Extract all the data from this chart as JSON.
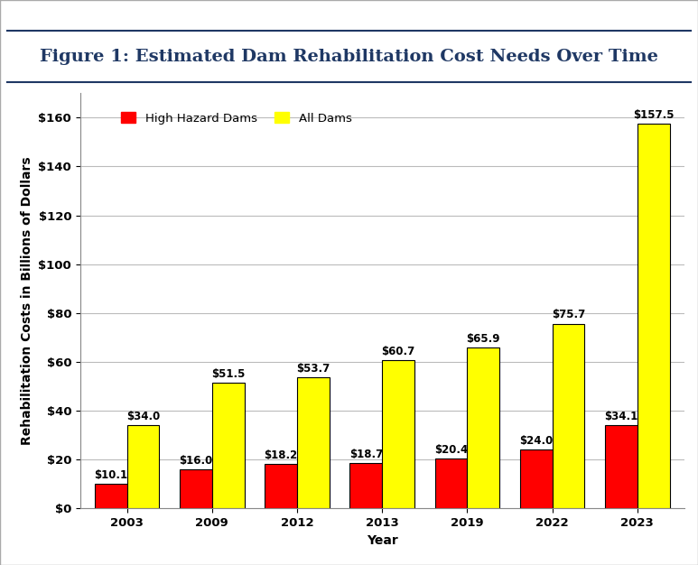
{
  "title": "Figure 1: Estimated Dam Rehabilitation Cost Needs Over Time",
  "xlabel": "Year",
  "ylabel": "Rehabilitation Costs in Billions of Dollars",
  "years": [
    "2003",
    "2009",
    "2012",
    "2013",
    "2019",
    "2022",
    "2023"
  ],
  "high_hazard_values": [
    10.1,
    16.0,
    18.2,
    18.7,
    20.4,
    24.0,
    34.1
  ],
  "all_dams_values": [
    34.0,
    51.5,
    53.7,
    60.7,
    65.9,
    75.7,
    157.5
  ],
  "high_hazard_color": "#FF0000",
  "all_dams_color": "#FFFF00",
  "bar_edge_color": "#000000",
  "ylim": [
    0,
    170
  ],
  "yticks": [
    0,
    20,
    40,
    60,
    80,
    100,
    120,
    140,
    160
  ],
  "ytick_labels": [
    "$0",
    "$20",
    "$40",
    "$60",
    "$80",
    "$100",
    "$120",
    "$140",
    "$160"
  ],
  "legend_high_hazard": "High Hazard Dams",
  "legend_all_dams": "All Dams",
  "title_color": "#1F3864",
  "title_fontsize": 14,
  "axis_label_fontsize": 10,
  "tick_fontsize": 9.5,
  "annotation_fontsize": 8.5,
  "bar_width": 0.38,
  "figure_bg": "#FFFFFF",
  "plot_bg": "#FFFFFF",
  "border_color": "#1F3864",
  "grid_color": "#BBBBBB",
  "outer_border_color": "#AAAAAA"
}
